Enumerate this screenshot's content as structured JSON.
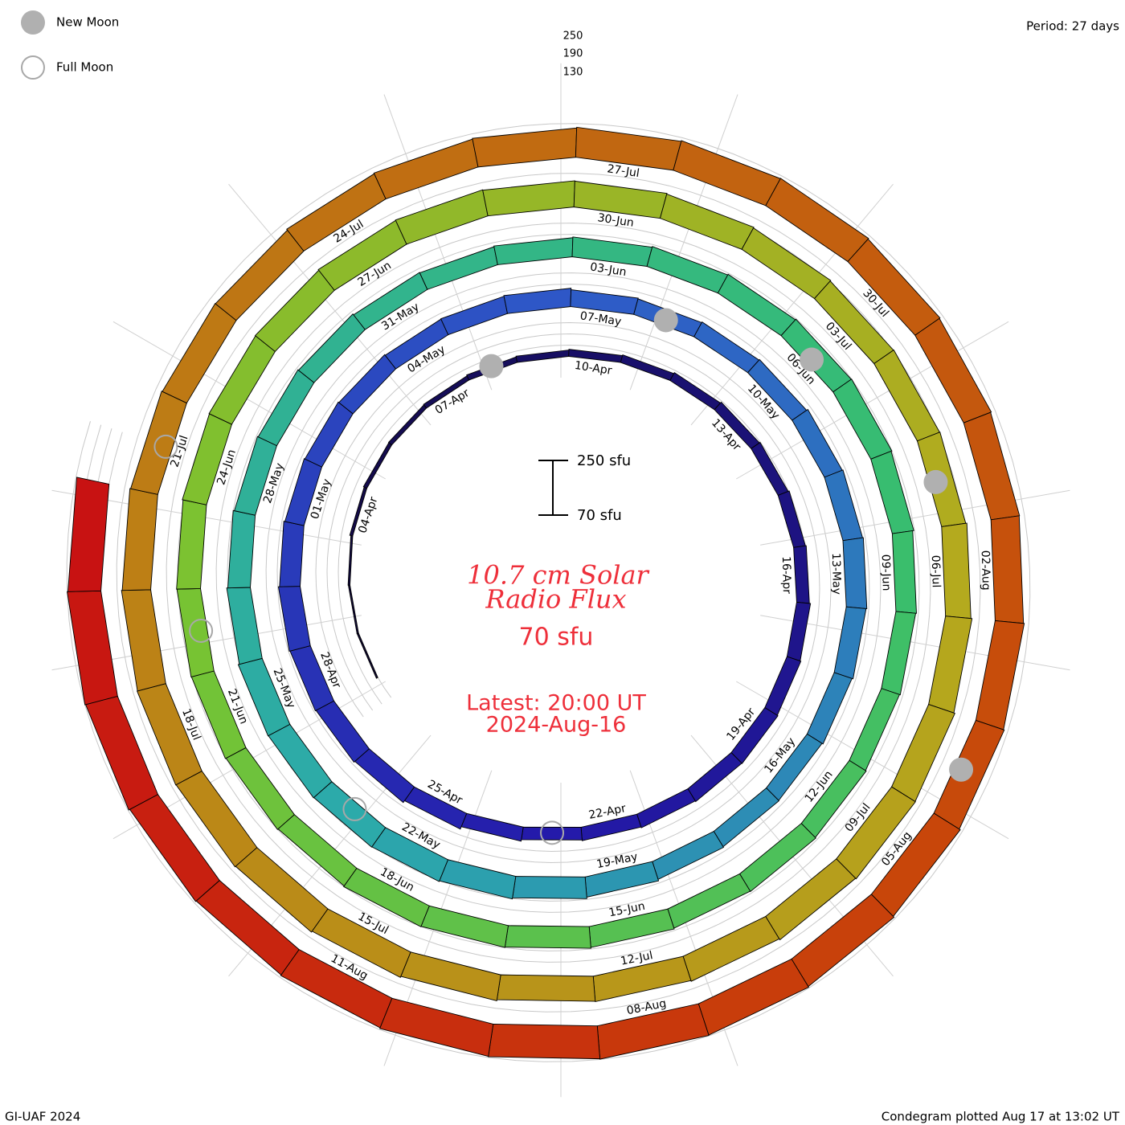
{
  "legend": {
    "new_moon_label": "New Moon",
    "full_moon_label": "Full Moon",
    "new_moon_color": "#b0b0b0",
    "full_moon_color": "#a8a8a8"
  },
  "period_label": "Period: 27 days",
  "scale_ticks": [
    "250",
    "190",
    "130"
  ],
  "scale_bar": {
    "top_label": "250 sfu",
    "bottom_label": "70 sfu"
  },
  "center": {
    "title_line1": "10.7 cm Solar",
    "title_line2": "Radio Flux",
    "baseline_label": "70 sfu",
    "latest_line1": "Latest: 20:00 UT",
    "latest_line2": "2024-Aug-16",
    "text_color": "#ee2f3a"
  },
  "footer": {
    "credit": "GI-UAF 2024",
    "plotted": "Condegram plotted Aug 17 at 13:02 UT"
  },
  "chart_data": {
    "type": "condegram",
    "title": "10.7 cm Solar Radio Flux",
    "baseline_sfu": 70,
    "max_sfu": 250,
    "period_days": 27,
    "start_date": "2024-04-01",
    "end_date": "2024-08-16",
    "daily_flux_sfu": [
      70,
      75,
      80,
      86,
      90,
      92,
      95,
      100,
      104,
      108,
      112,
      118,
      124,
      128,
      134,
      138,
      144,
      148,
      152,
      150,
      146,
      142,
      138,
      146,
      160,
      172,
      178,
      182,
      186,
      180,
      174,
      170,
      166,
      162,
      164,
      168,
      160,
      156,
      160,
      164,
      172,
      176,
      180,
      176,
      170,
      164,
      166,
      170,
      178,
      186,
      192,
      196,
      198,
      200,
      202,
      196,
      190,
      184,
      180,
      176,
      170,
      168,
      172,
      176,
      180,
      184,
      188,
      190,
      186,
      180,
      176,
      172,
      176,
      180,
      178,
      182,
      186,
      188,
      190,
      186,
      190,
      194,
      196,
      198,
      202,
      204,
      206,
      210,
      212,
      210,
      208,
      204,
      200,
      196,
      198,
      200,
      206,
      212,
      218,
      220,
      216,
      210,
      206,
      204,
      210,
      216,
      222,
      226,
      228,
      226,
      222,
      218,
      214,
      212,
      218,
      222,
      226,
      230,
      234,
      236,
      232,
      228,
      224,
      222,
      226,
      230,
      236,
      242,
      246,
      248,
      246,
      244,
      240,
      236,
      240,
      246,
      250,
      246
    ],
    "date_labels": [
      "04-Apr",
      "07-Apr",
      "10-Apr",
      "13-Apr",
      "16-Apr",
      "19-Apr",
      "22-Apr",
      "25-Apr",
      "28-Apr",
      "01-May",
      "04-May",
      "07-May",
      "10-May",
      "13-May",
      "16-May",
      "19-May",
      "22-May",
      "25-May",
      "28-May",
      "31-May",
      "03-Jun",
      "06-Jun",
      "09-Jun",
      "12-Jun",
      "15-Jun",
      "18-Jun",
      "21-Jun",
      "24-Jun",
      "27-Jun",
      "30-Jun",
      "03-Jul",
      "06-Jul",
      "09-Jul",
      "12-Jul",
      "15-Jul",
      "18-Jul",
      "21-Jul",
      "24-Jul",
      "27-Jul",
      "30-Jul",
      "02-Aug",
      "05-Aug",
      "08-Aug",
      "11-Aug"
    ],
    "new_moons": [
      "2024-04-08",
      "2024-05-08",
      "2024-06-06",
      "2024-07-05",
      "2024-08-04"
    ],
    "full_moons": [
      "2024-04-23",
      "2024-05-23",
      "2024-06-22",
      "2024-07-21"
    ]
  }
}
